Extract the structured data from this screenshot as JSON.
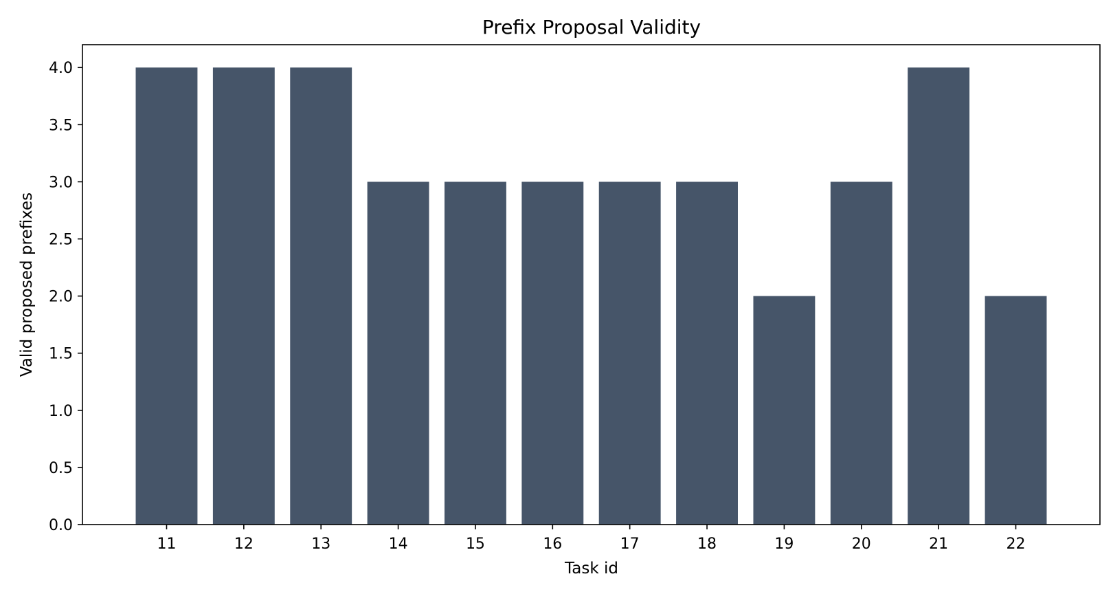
{
  "chart_data": {
    "type": "bar",
    "title": "Prefix Proposal Validity",
    "xlabel": "Task id",
    "ylabel": "Valid proposed prefixes",
    "categories": [
      "11",
      "12",
      "13",
      "14",
      "15",
      "16",
      "17",
      "18",
      "19",
      "20",
      "21",
      "22"
    ],
    "values": [
      4,
      4,
      4,
      3,
      3,
      3,
      3,
      3,
      2,
      3,
      4,
      2
    ],
    "ylim": [
      0,
      4.2
    ],
    "yticks": [
      "0.0",
      "0.5",
      "1.0",
      "1.5",
      "2.0",
      "2.5",
      "3.0",
      "3.5",
      "4.0"
    ],
    "bar_color": "#465569",
    "grid": false,
    "legend": "none"
  }
}
